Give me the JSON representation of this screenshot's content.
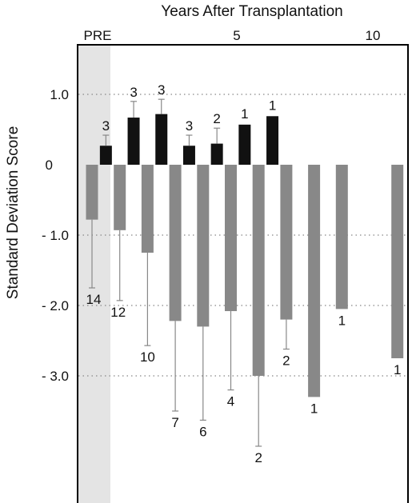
{
  "chart_data": {
    "type": "bar",
    "x_title": "Years After Transplantation",
    "ylabel": "Standard Deviation Score",
    "top_tick_labels": [
      "PRE",
      "5",
      "10"
    ],
    "y_tick_labels": [
      "1.0",
      "0",
      "- 1.0",
      "- 2.0",
      "- 3.0"
    ],
    "ylim": [
      -4.6,
      1.75
    ],
    "grid": "dotted horizontal lines at 1.0, -1.0, -2.0, -3.0",
    "series": [
      {
        "color": "#888888",
        "bars": [
          {
            "x": 0.0,
            "value": -0.78,
            "err_low": -1.75,
            "n": "14"
          },
          {
            "x": 1.0,
            "value": -0.93,
            "err_low": -1.93,
            "n": "12"
          },
          {
            "x": 2.0,
            "value": -1.25,
            "err_low": -2.57,
            "n": "10"
          },
          {
            "x": 3.0,
            "value": -2.22,
            "err_low": -3.5,
            "n": "7"
          },
          {
            "x": 4.0,
            "value": -2.3,
            "err_low": -3.63,
            "n": "6"
          },
          {
            "x": 5.0,
            "value": -2.08,
            "err_low": -3.2,
            "n": "4"
          },
          {
            "x": 6.0,
            "value": -3.0,
            "err_low": -4.0,
            "n": "2"
          },
          {
            "x": 7.0,
            "value": -2.2,
            "err_low": -2.62,
            "n": "2"
          },
          {
            "x": 8.0,
            "value": -3.3,
            "n": "1"
          },
          {
            "x": 9.0,
            "value": -2.05,
            "n": "1"
          },
          {
            "x": 11.0,
            "value": -2.75,
            "n": "1"
          }
        ]
      },
      {
        "color": "#111111",
        "bars": [
          {
            "x": 0.5,
            "value": 0.27,
            "err_high": 0.42,
            "n": "3"
          },
          {
            "x": 1.5,
            "value": 0.67,
            "err_high": 0.9,
            "n": "3"
          },
          {
            "x": 2.5,
            "value": 0.72,
            "err_high": 0.93,
            "n": "3"
          },
          {
            "x": 3.5,
            "value": 0.27,
            "err_high": 0.42,
            "n": "3"
          },
          {
            "x": 4.5,
            "value": 0.3,
            "err_high": 0.52,
            "n": "2"
          },
          {
            "x": 5.5,
            "value": 0.57,
            "n": "1"
          },
          {
            "x": 6.5,
            "value": 0.69,
            "n": "1"
          }
        ]
      }
    ]
  }
}
